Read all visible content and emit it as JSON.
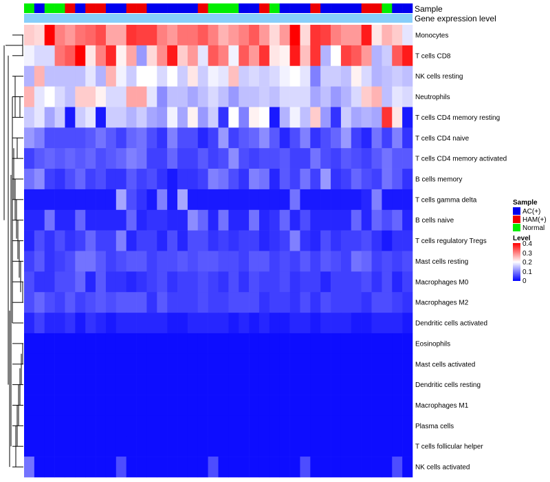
{
  "chart_data": {
    "type": "heatmap",
    "annotation_labels": [
      "Sample",
      "Gene expression level"
    ],
    "rows": [
      "Monocytes",
      "T cells CD8",
      "NK cells resting",
      "Neutrophils",
      "T cells CD4 memory resting",
      "T cells CD4 naive",
      "T cells CD4 memory activated",
      "B cells memory",
      "T cells gamma delta",
      "B cells naive",
      "T cells regulatory  Tregs",
      "Mast cells resting",
      "Macrophages M0",
      "Macrophages M2",
      "Dendritic cells activated",
      "Eosinophils",
      "Mast cells activated",
      "Dendritic cells resting",
      "Macrophages M1",
      "Plasma cells",
      "T cells follicular helper",
      "NK cells activated"
    ],
    "sample_groups": [
      "N",
      "A",
      "N",
      "N",
      "H",
      "A",
      "H",
      "H",
      "A",
      "A",
      "H",
      "H",
      "A",
      "A",
      "A",
      "A",
      "A",
      "H",
      "N",
      "N",
      "N",
      "A",
      "A",
      "H",
      "N",
      "A",
      "A",
      "A",
      "H",
      "A",
      "A",
      "A",
      "A",
      "H",
      "H",
      "N",
      "A",
      "A"
    ],
    "legend_sample": {
      "title": "Sample",
      "items": [
        {
          "key": "A",
          "label": "AC(+)",
          "color": "#0000EE"
        },
        {
          "key": "H",
          "label": "HAM(+)",
          "color": "#EE0000"
        },
        {
          "key": "N",
          "label": "Normal",
          "color": "#00EE00"
        }
      ]
    },
    "legend_level": {
      "title": "Level",
      "ticks": [
        "0.4",
        "0.3",
        "0.2",
        "0.1",
        "0"
      ],
      "range": [
        0,
        0.4
      ]
    },
    "gene_expression_bar_color": "#87CEFA",
    "color_low": "#0000FF",
    "color_mid": "#FFFFFF",
    "color_high": "#FF0000",
    "mid_value": 0.2,
    "values": [
      [
        0.24,
        0.23,
        0.4,
        0.3,
        0.28,
        0.31,
        0.32,
        0.34,
        0.27,
        0.27,
        0.36,
        0.35,
        0.35,
        0.3,
        0.28,
        0.31,
        0.31,
        0.33,
        0.3,
        0.26,
        0.28,
        0.3,
        0.33,
        0.28,
        0.23,
        0.28,
        0.4,
        0.23,
        0.36,
        0.35,
        0.3,
        0.28,
        0.28,
        0.38,
        0.22,
        0.26,
        0.24,
        0.18
      ],
      [
        0.19,
        0.17,
        0.17,
        0.31,
        0.33,
        0.4,
        0.22,
        0.3,
        0.37,
        0.21,
        0.27,
        0.12,
        0.23,
        0.29,
        0.38,
        0.24,
        0.28,
        0.18,
        0.33,
        0.3,
        0.19,
        0.33,
        0.28,
        0.36,
        0.22,
        0.21,
        0.38,
        0.25,
        0.36,
        0.14,
        0.2,
        0.35,
        0.33,
        0.28,
        0.14,
        0.16,
        0.33,
        0.38
      ],
      [
        0.14,
        0.26,
        0.15,
        0.15,
        0.15,
        0.15,
        0.18,
        0.14,
        0.26,
        0.19,
        0.16,
        0.2,
        0.2,
        0.17,
        0.2,
        0.16,
        0.22,
        0.16,
        0.19,
        0.18,
        0.25,
        0.16,
        0.17,
        0.16,
        0.17,
        0.19,
        0.2,
        0.18,
        0.1,
        0.16,
        0.16,
        0.15,
        0.21,
        0.17,
        0.14,
        0.15,
        0.16,
        0.15
      ],
      [
        0.26,
        0.18,
        0.2,
        0.17,
        0.15,
        0.24,
        0.24,
        0.21,
        0.17,
        0.17,
        0.27,
        0.27,
        0.18,
        0.11,
        0.15,
        0.15,
        0.13,
        0.15,
        0.17,
        0.15,
        0.12,
        0.15,
        0.15,
        0.16,
        0.15,
        0.17,
        0.17,
        0.17,
        0.13,
        0.15,
        0.12,
        0.14,
        0.17,
        0.24,
        0.26,
        0.15,
        0.18,
        0.17
      ],
      [
        0.16,
        0.18,
        0.13,
        0.16,
        0.02,
        0.16,
        0.18,
        0.02,
        0.16,
        0.16,
        0.14,
        0.16,
        0.13,
        0.12,
        0.19,
        0.13,
        0.21,
        0.12,
        0.16,
        0.04,
        0.2,
        0.1,
        0.21,
        0.2,
        0.02,
        0.14,
        0.19,
        0.15,
        0.24,
        0.12,
        0.04,
        0.16,
        0.13,
        0.14,
        0.13,
        0.36,
        0.22,
        0.02
      ],
      [
        0.12,
        0.1,
        0.06,
        0.06,
        0.06,
        0.06,
        0.07,
        0.09,
        0.07,
        0.05,
        0.08,
        0.09,
        0.06,
        0.04,
        0.1,
        0.06,
        0.06,
        0.03,
        0.05,
        0.12,
        0.05,
        0.07,
        0.08,
        0.11,
        0.07,
        0.03,
        0.06,
        0.1,
        0.04,
        0.06,
        0.08,
        0.12,
        0.05,
        0.03,
        0.09,
        0.05,
        0.1,
        0.04
      ],
      [
        0.05,
        0.07,
        0.08,
        0.07,
        0.08,
        0.07,
        0.08,
        0.06,
        0.07,
        0.08,
        0.1,
        0.09,
        0.05,
        0.05,
        0.08,
        0.05,
        0.05,
        0.07,
        0.05,
        0.06,
        0.11,
        0.06,
        0.05,
        0.06,
        0.06,
        0.07,
        0.05,
        0.05,
        0.09,
        0.06,
        0.05,
        0.07,
        0.06,
        0.05,
        0.07,
        0.09,
        0.07,
        0.07
      ],
      [
        0.09,
        0.11,
        0.05,
        0.04,
        0.06,
        0.08,
        0.05,
        0.06,
        0.04,
        0.04,
        0.07,
        0.05,
        0.06,
        0.04,
        0.02,
        0.04,
        0.04,
        0.05,
        0.1,
        0.09,
        0.06,
        0.04,
        0.1,
        0.09,
        0.03,
        0.07,
        0.05,
        0.09,
        0.05,
        0.12,
        0.04,
        0.05,
        0.08,
        0.06,
        0.05,
        0.09,
        0.07,
        0.04
      ],
      [
        0.02,
        0.02,
        0.02,
        0.02,
        0.02,
        0.02,
        0.02,
        0.02,
        0.02,
        0.13,
        0.06,
        0.04,
        0.02,
        0.1,
        0.02,
        0.13,
        0.02,
        0.02,
        0.02,
        0.02,
        0.02,
        0.02,
        0.02,
        0.02,
        0.02,
        0.02,
        0.09,
        0.02,
        0.02,
        0.02,
        0.02,
        0.02,
        0.02,
        0.03,
        0.1,
        0.02,
        0.02,
        0.02
      ],
      [
        0.03,
        0.03,
        0.09,
        0.03,
        0.03,
        0.08,
        0.03,
        0.03,
        0.03,
        0.03,
        0.08,
        0.03,
        0.04,
        0.04,
        0.03,
        0.03,
        0.11,
        0.08,
        0.03,
        0.09,
        0.03,
        0.03,
        0.09,
        0.03,
        0.04,
        0.08,
        0.03,
        0.06,
        0.03,
        0.03,
        0.03,
        0.03,
        0.08,
        0.03,
        0.08,
        0.06,
        0.08,
        0.03
      ],
      [
        0.03,
        0.06,
        0.04,
        0.06,
        0.04,
        0.05,
        0.08,
        0.05,
        0.05,
        0.1,
        0.03,
        0.05,
        0.05,
        0.03,
        0.06,
        0.03,
        0.06,
        0.06,
        0.04,
        0.05,
        0.04,
        0.05,
        0.05,
        0.03,
        0.04,
        0.05,
        0.1,
        0.04,
        0.03,
        0.06,
        0.04,
        0.05,
        0.05,
        0.06,
        0.04,
        0.02,
        0.04,
        0.04
      ],
      [
        0.05,
        0.07,
        0.04,
        0.05,
        0.06,
        0.09,
        0.09,
        0.07,
        0.05,
        0.06,
        0.07,
        0.07,
        0.05,
        0.06,
        0.06,
        0.07,
        0.06,
        0.07,
        0.07,
        0.06,
        0.06,
        0.05,
        0.07,
        0.07,
        0.05,
        0.06,
        0.05,
        0.07,
        0.05,
        0.07,
        0.06,
        0.05,
        0.09,
        0.08,
        0.05,
        0.06,
        0.05,
        0.06
      ],
      [
        0.06,
        0.04,
        0.04,
        0.06,
        0.06,
        0.08,
        0.03,
        0.07,
        0.04,
        0.04,
        0.03,
        0.04,
        0.05,
        0.06,
        0.04,
        0.05,
        0.05,
        0.06,
        0.05,
        0.04,
        0.06,
        0.04,
        0.06,
        0.05,
        0.05,
        0.06,
        0.04,
        0.05,
        0.05,
        0.03,
        0.05,
        0.05,
        0.05,
        0.06,
        0.04,
        0.06,
        0.03,
        0.05
      ],
      [
        0.06,
        0.08,
        0.06,
        0.05,
        0.07,
        0.05,
        0.06,
        0.07,
        0.06,
        0.07,
        0.07,
        0.07,
        0.04,
        0.07,
        0.05,
        0.05,
        0.05,
        0.06,
        0.05,
        0.05,
        0.06,
        0.06,
        0.06,
        0.04,
        0.05,
        0.05,
        0.04,
        0.06,
        0.04,
        0.06,
        0.05,
        0.05,
        0.05,
        0.04,
        0.06,
        0.06,
        0.05,
        0.04
      ],
      [
        0.03,
        0.05,
        0.03,
        0.03,
        0.04,
        0.02,
        0.04,
        0.03,
        0.02,
        0.03,
        0.03,
        0.03,
        0.03,
        0.03,
        0.02,
        0.02,
        0.03,
        0.03,
        0.03,
        0.03,
        0.02,
        0.03,
        0.02,
        0.03,
        0.02,
        0.02,
        0.03,
        0.03,
        0.02,
        0.03,
        0.03,
        0.03,
        0.02,
        0.02,
        0.03,
        0.03,
        0.03,
        0.02
      ],
      [
        0.01,
        0.01,
        0.01,
        0.01,
        0.01,
        0.01,
        0.01,
        0.01,
        0.01,
        0.01,
        0.01,
        0.01,
        0.01,
        0.01,
        0.01,
        0.01,
        0.01,
        0.01,
        0.01,
        0.01,
        0.01,
        0.01,
        0.01,
        0.01,
        0.01,
        0.01,
        0.01,
        0.01,
        0.01,
        0.01,
        0.01,
        0.01,
        0.01,
        0.01,
        0.01,
        0.01,
        0.01,
        0.01
      ],
      [
        0.01,
        0.01,
        0.01,
        0.01,
        0.01,
        0.01,
        0.01,
        0.01,
        0.01,
        0.01,
        0.01,
        0.01,
        0.01,
        0.01,
        0.01,
        0.01,
        0.01,
        0.01,
        0.01,
        0.01,
        0.01,
        0.01,
        0.01,
        0.01,
        0.01,
        0.01,
        0.01,
        0.01,
        0.01,
        0.01,
        0.01,
        0.01,
        0.01,
        0.01,
        0.01,
        0.01,
        0.01,
        0.01
      ],
      [
        0.01,
        0.01,
        0.01,
        0.01,
        0.01,
        0.01,
        0.01,
        0.01,
        0.01,
        0.01,
        0.01,
        0.01,
        0.01,
        0.01,
        0.01,
        0.01,
        0.01,
        0.01,
        0.01,
        0.01,
        0.01,
        0.01,
        0.01,
        0.01,
        0.01,
        0.01,
        0.01,
        0.01,
        0.01,
        0.01,
        0.01,
        0.01,
        0.01,
        0.01,
        0.01,
        0.01,
        0.01,
        0.01
      ],
      [
        0.01,
        0.01,
        0.01,
        0.01,
        0.01,
        0.01,
        0.01,
        0.01,
        0.01,
        0.01,
        0.01,
        0.01,
        0.01,
        0.01,
        0.01,
        0.01,
        0.01,
        0.01,
        0.01,
        0.01,
        0.01,
        0.01,
        0.01,
        0.01,
        0.01,
        0.01,
        0.01,
        0.01,
        0.01,
        0.01,
        0.01,
        0.01,
        0.01,
        0.01,
        0.01,
        0.01,
        0.01,
        0.01
      ],
      [
        0.01,
        0.01,
        0.01,
        0.01,
        0.01,
        0.01,
        0.01,
        0.01,
        0.01,
        0.01,
        0.01,
        0.01,
        0.01,
        0.01,
        0.01,
        0.01,
        0.01,
        0.01,
        0.01,
        0.01,
        0.01,
        0.01,
        0.01,
        0.01,
        0.01,
        0.01,
        0.01,
        0.01,
        0.01,
        0.01,
        0.01,
        0.01,
        0.01,
        0.01,
        0.01,
        0.01,
        0.01,
        0.01
      ],
      [
        0.01,
        0.01,
        0.01,
        0.01,
        0.01,
        0.01,
        0.01,
        0.01,
        0.01,
        0.01,
        0.01,
        0.01,
        0.01,
        0.01,
        0.01,
        0.01,
        0.01,
        0.01,
        0.01,
        0.01,
        0.01,
        0.01,
        0.01,
        0.01,
        0.01,
        0.01,
        0.01,
        0.01,
        0.01,
        0.01,
        0.01,
        0.01,
        0.01,
        0.01,
        0.01,
        0.01,
        0.01,
        0.01
      ],
      [
        0.09,
        0.01,
        0.01,
        0.01,
        0.01,
        0.01,
        0.01,
        0.01,
        0.01,
        0.06,
        0.01,
        0.01,
        0.01,
        0.01,
        0.01,
        0.01,
        0.01,
        0.01,
        0.06,
        0.01,
        0.01,
        0.01,
        0.01,
        0.01,
        0.01,
        0.01,
        0.01,
        0.06,
        0.01,
        0.01,
        0.01,
        0.01,
        0.01,
        0.01,
        0.01,
        0.01,
        0.06,
        0.01
      ]
    ]
  }
}
